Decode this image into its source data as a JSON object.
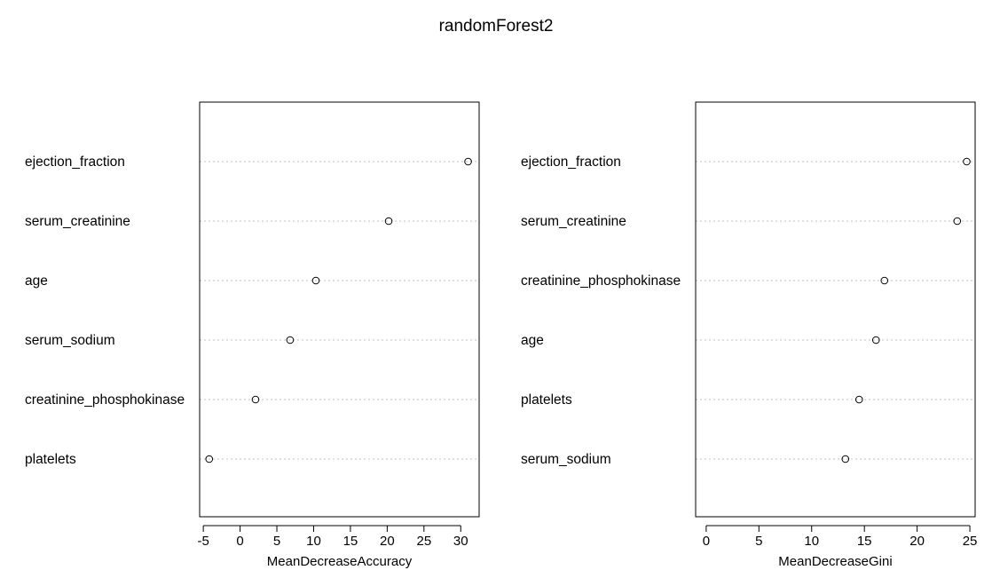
{
  "title": "randomForest2",
  "chart_data": [
    {
      "type": "dotchart",
      "xlabel": "MeanDecreaseAccuracy",
      "xlim": [
        -5.5,
        32.5
      ],
      "xticks": [
        -5,
        0,
        5,
        10,
        15,
        20,
        25,
        30
      ],
      "categories": [
        "ejection_fraction",
        "serum_creatinine",
        "age",
        "serum_sodium",
        "creatinine_phosphokinase",
        "platelets"
      ],
      "values": [
        31.0,
        20.2,
        10.3,
        6.8,
        2.1,
        -4.2
      ]
    },
    {
      "type": "dotchart",
      "xlabel": "MeanDecreaseGini",
      "xlim": [
        -1.0,
        25.5
      ],
      "xticks": [
        0,
        5,
        10,
        15,
        20,
        25
      ],
      "categories": [
        "ejection_fraction",
        "serum_creatinine",
        "creatinine_phosphokinase",
        "age",
        "platelets",
        "serum_sodium"
      ],
      "values": [
        24.7,
        23.8,
        16.9,
        16.1,
        14.5,
        13.2
      ]
    }
  ]
}
